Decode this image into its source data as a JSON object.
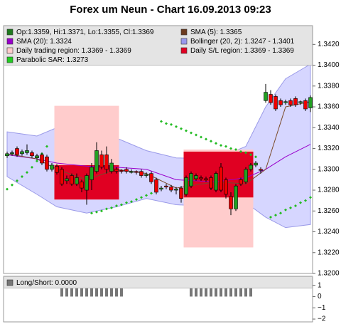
{
  "chart_data": [
    {
      "type": "candlestick",
      "title": "Forex um Neun - Chart 16.09.2013 09:23",
      "ylim": [
        1.32,
        1.3438
      ],
      "yticks": [
        {
          "value": 1.32,
          "label": "1.3200"
        },
        {
          "value": 1.322,
          "label": "1.3220"
        },
        {
          "value": 1.324,
          "label": "1.3240"
        },
        {
          "value": 1.326,
          "label": "1.3260"
        },
        {
          "value": 1.328,
          "label": "1.3280"
        },
        {
          "value": 1.33,
          "label": "1.3300"
        },
        {
          "value": 1.332,
          "label": "1.3320"
        },
        {
          "value": 1.334,
          "label": "1.3340"
        },
        {
          "value": 1.336,
          "label": "1.3360"
        },
        {
          "value": 1.338,
          "label": "1.3380"
        },
        {
          "value": 1.34,
          "label": "1.3400"
        },
        {
          "value": 1.342,
          "label": "1.3420"
        }
      ],
      "candles": {
        "up_color": "#22a022",
        "down_color": "#ee0000",
        "open": [
          1.3313,
          1.3315,
          1.332,
          1.3315,
          1.3316,
          1.3316,
          1.3311,
          1.3314,
          1.3312,
          1.33,
          1.3303,
          1.33,
          1.3289,
          1.3294,
          1.3286,
          1.3288,
          1.328,
          1.329,
          1.3298,
          1.3314,
          1.3314,
          1.3298,
          1.33,
          1.3299,
          1.33,
          1.3297,
          1.3298,
          1.3298,
          1.3294,
          1.3296,
          1.329,
          1.3281,
          1.3284,
          1.3283,
          1.328,
          1.3282,
          1.3276,
          1.3284,
          1.3291,
          1.3292,
          1.3291,
          1.3292,
          1.328,
          1.3302,
          1.329,
          1.3274,
          1.3262,
          1.329,
          1.3288,
          1.33,
          1.3304,
          1.33,
          1.3366,
          1.3372,
          1.337,
          1.3366,
          1.3364,
          1.3366,
          1.3368,
          1.3364,
          1.3366,
          1.3359
        ],
        "high": [
          1.3317,
          1.3318,
          1.3322,
          1.3319,
          1.3324,
          1.3318,
          1.3315,
          1.3316,
          1.3314,
          1.3306,
          1.3305,
          1.3302,
          1.3294,
          1.3296,
          1.3296,
          1.329,
          1.3296,
          1.3306,
          1.3326,
          1.3318,
          1.3322,
          1.331,
          1.3302,
          1.33,
          1.3302,
          1.33,
          1.3299,
          1.33,
          1.3297,
          1.3298,
          1.3292,
          1.3284,
          1.3286,
          1.3285,
          1.3283,
          1.3284,
          1.3294,
          1.3298,
          1.3296,
          1.3294,
          1.3293,
          1.3294,
          1.3298,
          1.3306,
          1.3292,
          1.3278,
          1.3286,
          1.3292,
          1.3302,
          1.3306,
          1.3308,
          1.3302,
          1.3382,
          1.3376,
          1.3372,
          1.3368,
          1.3367,
          1.3368,
          1.337,
          1.3366,
          1.3368,
          1.3371
        ],
        "low": [
          1.3311,
          1.3313,
          1.3312,
          1.3313,
          1.3314,
          1.3311,
          1.3309,
          1.3304,
          1.3298,
          1.3298,
          1.3295,
          1.3284,
          1.3286,
          1.3284,
          1.3284,
          1.3278,
          1.3266,
          1.328,
          1.3296,
          1.33,
          1.3296,
          1.3296,
          1.3296,
          1.3296,
          1.3296,
          1.3296,
          1.3295,
          1.3292,
          1.3292,
          1.3286,
          1.3276,
          1.3279,
          1.3281,
          1.3278,
          1.3276,
          1.3268,
          1.3274,
          1.3282,
          1.3289,
          1.3289,
          1.3288,
          1.328,
          1.3278,
          1.3278,
          1.3272,
          1.3256,
          1.326,
          1.3284,
          1.3286,
          1.3298,
          1.3302,
          1.3296,
          1.3364,
          1.3362,
          1.3356,
          1.336,
          1.3362,
          1.336,
          1.336,
          1.3362,
          1.3356,
          1.3355
        ],
        "close": [
          1.3315,
          1.3316,
          1.3314,
          1.3317,
          1.3318,
          1.3313,
          1.3313,
          1.3306,
          1.33,
          1.3304,
          1.3297,
          1.3286,
          1.3291,
          1.3286,
          1.3292,
          1.3282,
          1.3294,
          1.3302,
          1.3318,
          1.3302,
          1.33,
          1.3306,
          1.3298,
          1.3298,
          1.3298,
          1.3298,
          1.3297,
          1.3294,
          1.3295,
          1.3288,
          1.3278,
          1.3282,
          1.3283,
          1.328,
          1.3281,
          1.3272,
          1.3292,
          1.3296,
          1.3294,
          1.3291,
          1.329,
          1.3282,
          1.3296,
          1.328,
          1.3276,
          1.3262,
          1.3284,
          1.3286,
          1.33,
          1.3304,
          1.3306,
          1.3299,
          1.3374,
          1.3364,
          1.3358,
          1.3362,
          1.3365,
          1.3362,
          1.3362,
          1.3365,
          1.3358,
          1.3369
        ]
      },
      "band": {
        "fill": "#ccccff",
        "stroke": "#9a9ae8",
        "x": [
          0,
          6,
          10,
          16,
          22,
          28,
          34,
          42,
          48,
          52,
          56,
          61
        ],
        "upper": [
          1.3336,
          1.3332,
          1.334,
          1.3332,
          1.333,
          1.3318,
          1.3311,
          1.331,
          1.3322,
          1.336,
          1.3387,
          1.3401
        ],
        "lower": [
          1.3293,
          1.3276,
          1.3264,
          1.3258,
          1.3264,
          1.3272,
          1.3266,
          1.3264,
          1.3268,
          1.3254,
          1.3244,
          1.3247
        ]
      },
      "lines": [
        {
          "color": "#9900cc",
          "x": [
            0,
            6,
            10,
            16,
            22,
            28,
            34,
            42,
            48,
            52,
            56,
            61
          ],
          "values": [
            1.3314,
            1.331,
            1.3306,
            1.3303,
            1.3302,
            1.33,
            1.329,
            1.3288,
            1.3292,
            1.33,
            1.3312,
            1.3324
          ]
        },
        {
          "color": "#7a4a2a",
          "x": [
            0,
            6,
            10,
            16,
            22,
            28,
            34,
            42,
            48,
            52,
            56,
            61
          ],
          "values": [
            1.3315,
            1.331,
            1.33,
            1.329,
            1.33,
            1.3296,
            1.3282,
            1.3288,
            1.3286,
            1.33,
            1.336,
            1.3365
          ]
        }
      ],
      "sar": {
        "color": "#22bb22",
        "x": [
          0,
          1,
          2,
          3,
          4,
          5,
          6,
          7,
          8,
          17,
          18,
          19,
          20,
          21,
          22,
          23,
          24,
          25,
          26,
          27,
          28,
          29,
          31,
          32,
          33,
          34,
          35,
          36,
          37,
          38,
          39,
          40,
          41,
          42,
          43,
          44,
          45,
          46,
          47,
          48,
          49,
          50,
          53,
          54,
          55,
          56,
          57,
          58,
          59,
          60,
          61
        ],
        "values": [
          1.3281,
          1.3285,
          1.3289,
          1.3293,
          1.3297,
          1.3302,
          1.3308,
          1.3315,
          1.3322,
          1.3258,
          1.3259,
          1.326,
          1.3262,
          1.3263,
          1.3265,
          1.3266,
          1.3268,
          1.3269,
          1.3271,
          1.3273,
          1.3275,
          1.3277,
          1.3346,
          1.3344,
          1.3343,
          1.3341,
          1.3339,
          1.3337,
          1.3335,
          1.3333,
          1.3331,
          1.3329,
          1.3327,
          1.3325,
          1.3323,
          1.3322,
          1.332,
          1.3319,
          1.3317,
          1.3316,
          1.3314,
          1.3312,
          1.3254,
          1.3256,
          1.3258,
          1.3261,
          1.3263,
          1.3265,
          1.3268,
          1.327,
          1.3273
        ]
      },
      "regions": [
        {
          "color": "#ffcccc",
          "start": 10,
          "end": 22,
          "lo": 1.3271,
          "hi": 1.3361
        },
        {
          "color": "#ffcccc",
          "start": 36,
          "end": 49,
          "lo": 1.3225,
          "hi": 1.3319
        },
        {
          "color": "#e00022",
          "start": 10,
          "end": 22,
          "lo": 1.3271,
          "hi": 1.3304
        },
        {
          "color": "#e00022",
          "start": 36,
          "end": 49,
          "lo": 1.3273,
          "hi": 1.3317
        }
      ],
      "legend": [
        {
          "label": "Op:1.3359, Hi:1.3371, Lo:1.3355, Cl:1.3369",
          "color": "#1e7a1e"
        },
        {
          "label": "SMA (5): 1.3365",
          "color": "#6b3a1e"
        },
        {
          "label": "SMA (20): 1.3324",
          "color": "#9900cc"
        },
        {
          "label": "Bollinger (20, 2): 1.3247 - 1.3401",
          "color": "#9999ee"
        },
        {
          "label": "Daily trading region: 1.3369 - 1.3369",
          "color": "#ffcccc"
        },
        {
          "label": "Daily S/L region: 1.3369 - 1.3369",
          "color": "#e00022"
        },
        {
          "label": "Parabolic SAR: 1.3273",
          "color": "#22cc22"
        }
      ]
    },
    {
      "type": "bar",
      "ylim": [
        -2.25,
        1.8
      ],
      "yticks": [
        1,
        0,
        {
          "value": -1,
          "label": "−1"
        },
        {
          "value": -2,
          "label": "−2"
        }
      ],
      "color": "#777777",
      "legend": [
        {
          "label": "Long/Short: 0.0000",
          "color": "#777777"
        }
      ],
      "x": [
        11,
        12,
        13,
        14,
        15,
        16,
        17,
        18,
        19,
        20,
        21,
        22,
        23,
        37,
        38,
        39,
        40,
        41,
        42,
        43,
        44,
        45,
        46,
        47,
        48,
        49
      ],
      "values": [
        1,
        1,
        1,
        1,
        1,
        1,
        1,
        1,
        1,
        1,
        1,
        1,
        1,
        1,
        1,
        1,
        1,
        1,
        1,
        1,
        1,
        1,
        1,
        1,
        1,
        1
      ]
    }
  ]
}
